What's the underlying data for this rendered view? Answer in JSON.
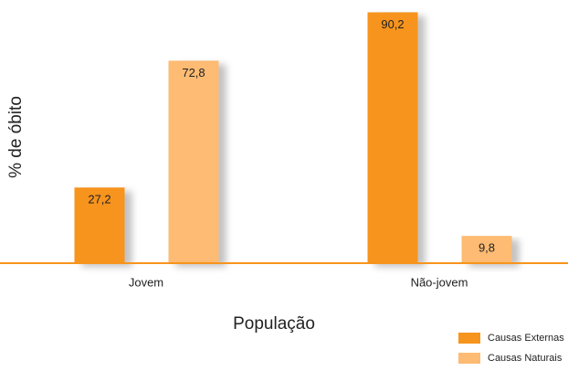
{
  "chart_data": {
    "type": "bar",
    "x_label": "População",
    "y_label": "% de óbito",
    "categories": [
      "Jovem",
      "Não-jovem"
    ],
    "series": [
      {
        "name": "Causas Externas",
        "color": "#f7941d",
        "values": [
          27.2,
          90.2
        ],
        "value_labels": [
          "27,2",
          "90,2"
        ]
      },
      {
        "name": "Causas Naturais",
        "color": "#fdbb73",
        "values": [
          72.8,
          9.8
        ],
        "value_labels": [
          "72,8",
          "9,8"
        ]
      }
    ],
    "ylim": [
      0,
      92
    ],
    "grid": false,
    "legend": "lower right"
  }
}
